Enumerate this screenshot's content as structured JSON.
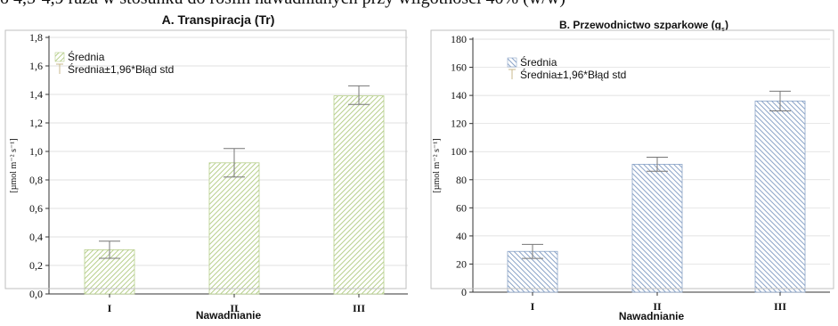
{
  "caption_fragment": "o 4,5-4,9 raza w stosunku do roślin nawadnianych przy wilgotności 40% (w/w)",
  "chart_data": [
    {
      "type": "bar",
      "panel": "A",
      "title": "A. Transpiracja (Tr)",
      "xlabel": "Nawadnianie",
      "ylabel": "[µmol m⁻² s⁻¹]",
      "categories": [
        "I",
        "II",
        "III"
      ],
      "ylim": [
        0,
        1.8
      ],
      "yticks": [
        "0,0",
        "0,2",
        "0,4",
        "0,6",
        "0,8",
        "1,0",
        "1,2",
        "1,4",
        "1,6",
        "1,8"
      ],
      "grid": true,
      "legend_position": "top-left",
      "series": [
        {
          "name": "Średnia",
          "values": [
            0.31,
            0.92,
            1.39
          ],
          "error_low": [
            0.25,
            0.82,
            1.33
          ],
          "error_high": [
            0.37,
            1.02,
            1.46
          ]
        }
      ],
      "error_label": "Średnia±1,96*Błąd std",
      "color": "#b7cf8c"
    },
    {
      "type": "bar",
      "panel": "B",
      "title": "B. Przewodnictwo szparkowe (g",
      "title_sub": "s",
      "title_end": ")",
      "xlabel": "Nawadnianie",
      "ylabel": "[µmol m⁻² s⁻¹]",
      "categories": [
        "I",
        "II",
        "III"
      ],
      "ylim": [
        0,
        180
      ],
      "yticks": [
        "0",
        "20",
        "40",
        "60",
        "80",
        "100",
        "120",
        "140",
        "160",
        "180"
      ],
      "grid": true,
      "legend_position": "top-left",
      "series": [
        {
          "name": "Średnia",
          "values": [
            29,
            91,
            136
          ],
          "error_low": [
            24,
            86,
            129
          ],
          "error_high": [
            34,
            96,
            143
          ]
        }
      ],
      "error_label": "Średnia±1,96*Błąd std",
      "color": "#8aa3c7"
    }
  ]
}
